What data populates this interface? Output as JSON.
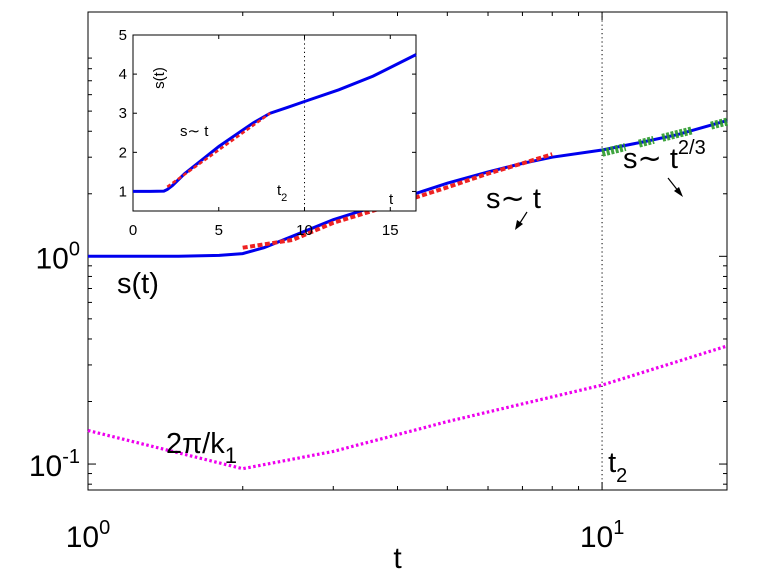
{
  "chart_data": [
    {
      "id": "main",
      "type": "line",
      "xscale": "log",
      "yscale": "log",
      "xlim": [
        1,
        17.5
      ],
      "ylim": [
        0.075,
        15
      ],
      "xlabel": "t",
      "ylabel": "",
      "title": "",
      "grid": false,
      "x_ticks": [
        {
          "value": 1,
          "base": "10",
          "exp": "0"
        },
        {
          "value": 10,
          "base": "10",
          "exp": "1"
        }
      ],
      "y_ticks": [
        {
          "value": 0.1,
          "base": "10",
          "exp": "-1"
        },
        {
          "value": 1,
          "base": "10",
          "exp": "0"
        }
      ],
      "series": [
        {
          "label": "s(t)",
          "color": "#0000ee",
          "style": "solid",
          "x": [
            1,
            1.5,
            1.8,
            2,
            2.2,
            2.5,
            3,
            4,
            5,
            6,
            7,
            8,
            10,
            12,
            14,
            17.5
          ],
          "y": [
            1.0,
            1.0,
            1.01,
            1.03,
            1.1,
            1.25,
            1.5,
            1.88,
            2.25,
            2.55,
            2.8,
            3.0,
            3.25,
            3.55,
            3.85,
            4.5
          ]
        },
        {
          "label": "2π/k",
          "label_sub": "1",
          "color": "#ee00ee",
          "style": "dotted",
          "x": [
            1,
            2,
            3,
            5,
            10,
            17.5
          ],
          "y": [
            0.145,
            0.095,
            0.115,
            0.16,
            0.24,
            0.37
          ]
        }
      ],
      "fits": [
        {
          "label": "s∼ t",
          "color": "#ee2222",
          "style": "dashed",
          "x": [
            2,
            2.5,
            3,
            4,
            5,
            6,
            7,
            8
          ],
          "y": [
            1.1,
            1.2,
            1.45,
            1.8,
            2.15,
            2.5,
            2.8,
            3.1
          ]
        },
        {
          "label": "s∼ t",
          "label_sup": "2/3",
          "color": "#2a9a2a",
          "style": "dashed",
          "x": [
            10,
            11,
            12,
            13,
            14,
            15,
            16,
            17.5
          ],
          "y": [
            3.15,
            3.35,
            3.55,
            3.72,
            3.9,
            4.1,
            4.25,
            4.45
          ]
        }
      ],
      "vline": {
        "x": 10,
        "label": "t",
        "label_sub": "2",
        "style": "dotted"
      }
    },
    {
      "id": "inset",
      "type": "line",
      "xscale": "linear",
      "yscale": "linear",
      "xlim": [
        0,
        16.5
      ],
      "ylim": [
        0.5,
        5
      ],
      "xlabel": "t",
      "ylabel": "s(t)",
      "title": "",
      "grid": false,
      "x_ticks": [
        "0",
        "5",
        "10",
        "15"
      ],
      "x_tick_values": [
        0,
        5,
        10,
        15
      ],
      "y_ticks": [
        "1",
        "2",
        "3",
        "4",
        "5"
      ],
      "y_tick_values": [
        1,
        2,
        3,
        4,
        5
      ],
      "series": [
        {
          "color": "#0000ee",
          "style": "solid",
          "x": [
            0,
            1,
            1.8,
            2,
            2.3,
            3,
            4,
            5,
            6,
            7,
            8,
            9,
            10,
            12,
            14,
            16.5
          ],
          "y": [
            1.0,
            1.0,
            1.01,
            1.05,
            1.15,
            1.45,
            1.8,
            2.15,
            2.45,
            2.75,
            3.0,
            3.15,
            3.3,
            3.6,
            3.95,
            4.5
          ]
        }
      ],
      "fits": [
        {
          "label": "s∼ t",
          "color": "#ee2222",
          "style": "dashed",
          "x": [
            2,
            8
          ],
          "y": [
            1.12,
            3.0
          ]
        }
      ],
      "vline": {
        "x": 10,
        "label": "t",
        "label_sub": "2",
        "style": "dotted"
      }
    }
  ]
}
